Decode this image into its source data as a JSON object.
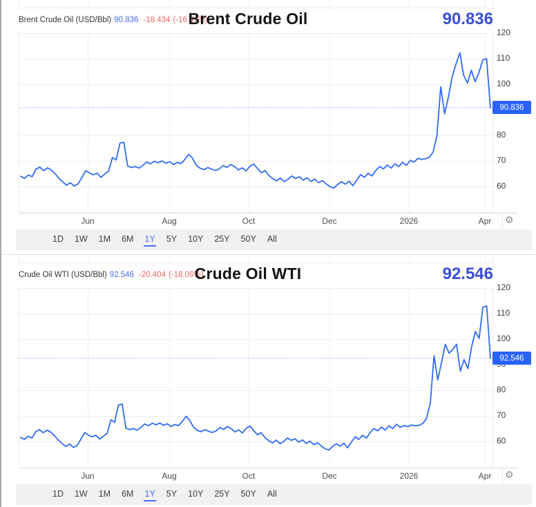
{
  "colors": {
    "line_blue": "#2f6bf2",
    "badge_blue": "#2962ff",
    "value_blue": "#4a6cf7",
    "change_red": "#ef6565",
    "big_value_blue": "#3a4ed8"
  },
  "settings_icon": {
    "name": "gear-icon",
    "glyph": "⚙"
  },
  "range_buttons": {
    "options": [
      "1D",
      "1W",
      "1M",
      "6M",
      "1Y",
      "5Y",
      "10Y",
      "25Y",
      "50Y",
      "All"
    ],
    "active": "1Y"
  },
  "chart_data": [
    {
      "type": "line",
      "title": "Brent Crude Oil",
      "instrument_label": "Brent Crude Oil (USD/Bbl)",
      "last_price": "90.836",
      "change": "-18.434",
      "change_percent": "(-16.87%)",
      "y_ticks": [
        120,
        110,
        100,
        90,
        80,
        70,
        60
      ],
      "ylim": [
        50,
        130
      ],
      "grid": true,
      "legend_position": "none",
      "x_labels": [
        "Jun",
        "Aug",
        "Oct",
        "Dec",
        "2026",
        "Apr"
      ],
      "current_value": 90.836,
      "values": [
        64.0,
        63.2,
        64.5,
        63.8,
        66.8,
        67.6,
        66.2,
        67.3,
        66.5,
        65.0,
        63.2,
        61.8,
        60.5,
        61.5,
        60.2,
        61.0,
        63.5,
        66.2,
        65.3,
        64.6,
        65.2,
        63.6,
        64.8,
        66.0,
        71.3,
        70.4,
        77.0,
        77.3,
        68.0,
        67.4,
        67.8,
        67.2,
        68.3,
        69.6,
        68.9,
        69.9,
        69.3,
        70.0,
        69.1,
        69.7,
        68.6,
        69.4,
        69.0,
        70.6,
        72.6,
        71.0,
        68.3,
        67.1,
        66.6,
        67.4,
        66.8,
        66.3,
        66.9,
        68.2,
        67.5,
        68.6,
        67.8,
        66.5,
        67.3,
        66.1,
        67.9,
        68.8,
        67.0,
        65.4,
        66.2,
        64.3,
        63.1,
        62.2,
        63.3,
        61.9,
        62.8,
        64.1,
        63.2,
        63.8,
        62.5,
        63.4,
        62.0,
        62.9,
        61.5,
        62.3,
        61.0,
        59.9,
        59.4,
        60.8,
        61.9,
        60.9,
        62.1,
        60.3,
        62.5,
        64.6,
        63.6,
        65.2,
        64.1,
        66.3,
        67.8,
        66.9,
        68.4,
        67.2,
        68.9,
        67.8,
        69.5,
        68.3,
        70.2,
        69.6,
        71.0,
        70.6,
        70.9,
        71.5,
        73.5,
        80.0,
        99.0,
        88.5,
        95.0,
        103.0,
        108.0,
        112.3,
        103.5,
        100.5,
        105.5,
        101.0,
        104.5,
        109.5,
        110.0,
        90.836
      ]
    },
    {
      "type": "line",
      "title": "Crude Oil WTI",
      "instrument_label": "Crude Oil WTI (USD/Bbl)",
      "last_price": "92.546",
      "change": "-20.404",
      "change_percent": "(-18.06%)",
      "y_ticks": [
        120,
        110,
        100,
        90,
        80,
        70,
        60
      ],
      "ylim": [
        50,
        130
      ],
      "grid": true,
      "legend_position": "none",
      "x_labels": [
        "Jun",
        "Aug",
        "Oct",
        "Dec",
        "2026",
        "Apr"
      ],
      "current_value": 92.546,
      "values": [
        61.5,
        60.8,
        62.0,
        61.3,
        63.8,
        64.6,
        63.4,
        64.4,
        63.6,
        62.2,
        60.5,
        59.2,
        58.0,
        59.0,
        57.6,
        58.4,
        60.8,
        63.4,
        62.5,
        61.8,
        62.4,
        60.9,
        62.0,
        63.2,
        68.4,
        67.5,
        74.2,
        74.6,
        65.2,
        64.6,
        65.0,
        64.4,
        65.5,
        66.8,
        66.1,
        67.1,
        66.5,
        67.2,
        66.3,
        66.9,
        65.8,
        66.6,
        66.2,
        67.8,
        69.8,
        68.2,
        65.5,
        64.3,
        63.8,
        64.6,
        64.0,
        63.5,
        64.1,
        65.4,
        64.7,
        65.8,
        65.0,
        63.7,
        64.5,
        63.3,
        65.1,
        66.0,
        64.2,
        62.6,
        63.4,
        61.5,
        60.3,
        59.4,
        60.5,
        59.1,
        60.0,
        61.3,
        60.4,
        61.0,
        59.7,
        60.6,
        59.2,
        60.1,
        58.7,
        59.5,
        58.2,
        57.1,
        56.6,
        58.0,
        59.1,
        58.1,
        59.3,
        57.5,
        59.7,
        61.8,
        60.8,
        62.4,
        61.3,
        63.5,
        65.0,
        64.1,
        65.6,
        64.4,
        66.1,
        65.0,
        66.7,
        65.5,
        66.2,
        65.8,
        66.4,
        66.1,
        66.3,
        67.0,
        69.0,
        75.0,
        93.5,
        84.0,
        91.0,
        98.0,
        94.5,
        96.0,
        98.0,
        87.5,
        92.0,
        88.5,
        97.0,
        103.0,
        100.3,
        112.5,
        113.0,
        92.546
      ]
    }
  ]
}
